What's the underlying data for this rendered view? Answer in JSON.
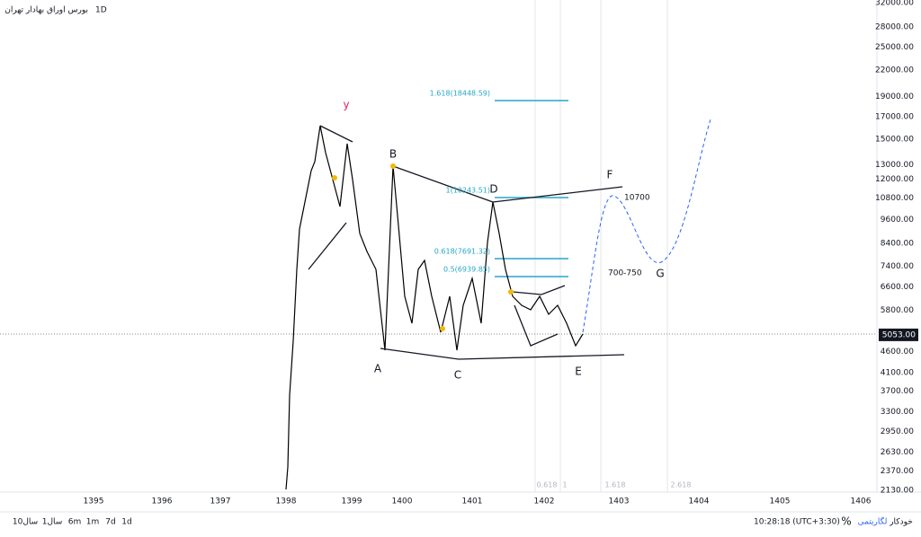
{
  "header": {
    "title": "بورس اوراق بهادار تهران",
    "interval": "1D"
  },
  "price_axis": {
    "labels": [
      "32000.00",
      "28000.00",
      "25000.00",
      "22000.00",
      "19000.00",
      "17000.00",
      "15000.00",
      "13000.00",
      "12000.00",
      "10800.00",
      "9600.00",
      "8400.00",
      "7400.00",
      "6600.00",
      "5800.00",
      "4600.00",
      "4100.00",
      "3700.00",
      "3300.00",
      "2950.00",
      "2630.00",
      "2370.00",
      "2130.00"
    ],
    "current": "5053.00"
  },
  "time_axis": {
    "labels": [
      "1395",
      "1396",
      "1397",
      "1398",
      "1399",
      "1400",
      "1401",
      "1402",
      "1403",
      "1404",
      "1405",
      "1406"
    ]
  },
  "annotations": {
    "points": [
      "y",
      "B",
      "D",
      "F",
      "A",
      "C",
      "E",
      "G"
    ],
    "levels": [
      "10700",
      "700-750"
    ],
    "fib": [
      "1.618(18448.59)",
      "1(10243.51)",
      "0.618(7691.32)",
      "0.5(6939.85)"
    ],
    "fib_time": [
      "0.618",
      "1",
      "1.618",
      "2.618"
    ]
  },
  "toolbar": {
    "ranges": [
      "10سال",
      "1سال",
      "6m",
      "1m",
      "7d",
      "1d"
    ],
    "clock": "10:28:18 (UTC+3:30)",
    "percent": "%",
    "log": "لگاریتمی",
    "auto": "خودکار"
  }
}
